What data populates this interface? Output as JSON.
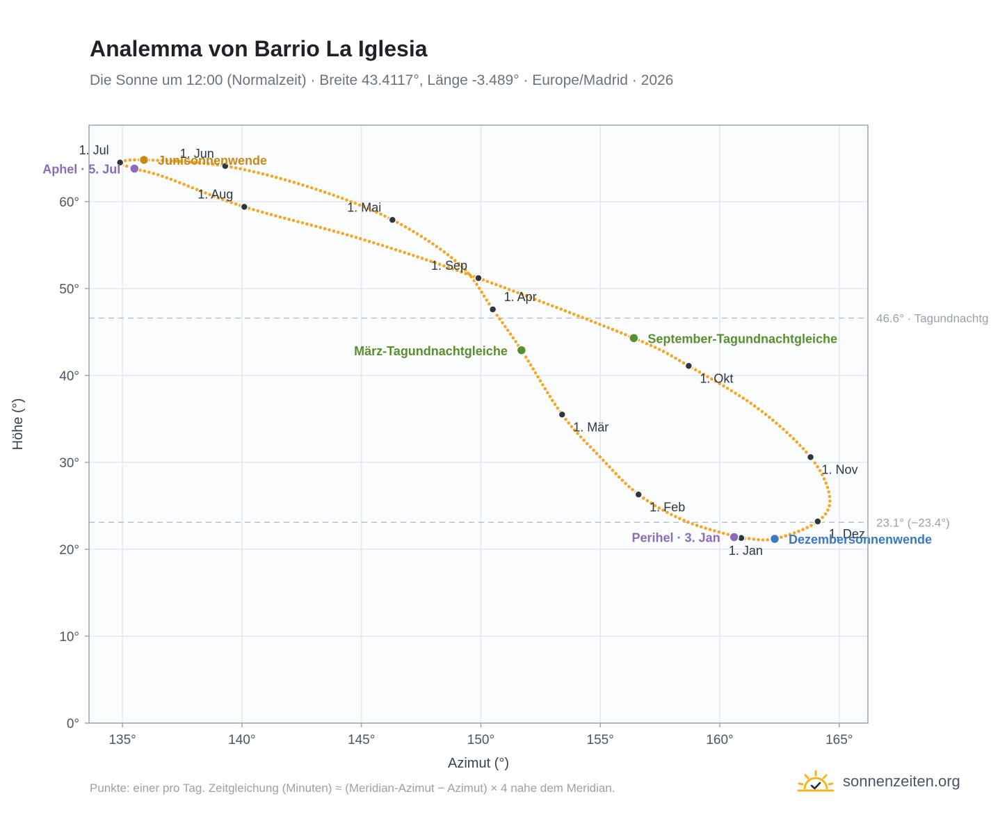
{
  "header": {
    "title": "Analemma von Barrio La Iglesia",
    "subtitle": "Die Sonne um 12:00 (Normalzeit) · Breite 43.4117°, Länge -3.489° · Europe/Madrid · 2026"
  },
  "footer": {
    "note": "Punkte: einer pro Tag. Zeitgleichung (Minuten) ≈ (Meridian-Azimut − Azimut) × 4 nahe dem Meridian.",
    "brand": "sonnenzeiten.org"
  },
  "chart_data": {
    "type": "scatter",
    "xlabel": "Azimut (°)",
    "ylabel": "Höhe (°)",
    "xlim": [
      133.6,
      166.2
    ],
    "ylim": [
      0,
      68.8
    ],
    "xticks": [
      135,
      140,
      145,
      150,
      155,
      160,
      165
    ],
    "xtick_labels": [
      "135°",
      "140°",
      "145°",
      "150°",
      "155°",
      "160°",
      "165°"
    ],
    "yticks": [
      0,
      10,
      20,
      30,
      40,
      50,
      60
    ],
    "ytick_labels": [
      "0°",
      "10°",
      "20°",
      "30°",
      "40°",
      "50°",
      "60°"
    ],
    "grid": true,
    "colors": {
      "curve": "#f5a623",
      "month_marker": "#2f3640",
      "solstice_june": "#c8891a",
      "solstice_december": "#3a78c2",
      "equinox": "#5a8f2e",
      "apsis": "#8e6bb8",
      "reference_line": "#b9c2cc",
      "plot_background": "#fafcfe"
    },
    "reference_lines": [
      {
        "y": 46.6,
        "label": "46.6° · Tagundnachtg"
      },
      {
        "y": 23.1,
        "label": "23.1° (−23.4°)"
      }
    ],
    "path": [
      {
        "date": "01-01",
        "azimuth": 160.9,
        "altitude": 21.3
      },
      {
        "date": "01-16",
        "azimuth": 158.6,
        "altitude": 23.2
      },
      {
        "date": "02-01",
        "azimuth": 156.6,
        "altitude": 26.3
      },
      {
        "date": "02-15",
        "azimuth": 155.0,
        "altitude": 30.6
      },
      {
        "date": "03-01",
        "azimuth": 153.4,
        "altitude": 35.5
      },
      {
        "date": "03-20",
        "azimuth": 151.7,
        "altitude": 42.9
      },
      {
        "date": "04-01",
        "azimuth": 150.5,
        "altitude": 47.6
      },
      {
        "date": "04-15",
        "azimuth": 149.1,
        "altitude": 52.8
      },
      {
        "date": "05-01",
        "azimuth": 146.3,
        "altitude": 57.9
      },
      {
        "date": "05-15",
        "azimuth": 142.9,
        "altitude": 61.6
      },
      {
        "date": "06-01",
        "azimuth": 139.3,
        "altitude": 64.1
      },
      {
        "date": "06-21",
        "azimuth": 135.9,
        "altitude": 64.8
      },
      {
        "date": "07-01",
        "azimuth": 134.9,
        "altitude": 64.5
      },
      {
        "date": "07-05",
        "azimuth": 135.5,
        "altitude": 63.8
      },
      {
        "date": "07-15",
        "azimuth": 136.8,
        "altitude": 62.8
      },
      {
        "date": "08-01",
        "azimuth": 140.1,
        "altitude": 59.4
      },
      {
        "date": "08-15",
        "azimuth": 145.0,
        "altitude": 55.7
      },
      {
        "date": "09-01",
        "azimuth": 149.9,
        "altitude": 51.2
      },
      {
        "date": "09-22",
        "azimuth": 156.4,
        "altitude": 44.3
      },
      {
        "date": "10-01",
        "azimuth": 158.7,
        "altitude": 41.1
      },
      {
        "date": "10-15",
        "azimuth": 161.6,
        "altitude": 36.2
      },
      {
        "date": "11-01",
        "azimuth": 163.8,
        "altitude": 30.6
      },
      {
        "date": "11-15",
        "azimuth": 164.6,
        "altitude": 26.0
      },
      {
        "date": "12-01",
        "azimuth": 164.1,
        "altitude": 23.2
      },
      {
        "date": "12-21",
        "azimuth": 162.3,
        "altitude": 21.2
      },
      {
        "date": "12-31",
        "azimuth": 161.0,
        "altitude": 21.3
      }
    ],
    "month_markers": [
      {
        "label": "1. Jan",
        "azimuth": 160.9,
        "altitude": 21.3,
        "label_pos": "below"
      },
      {
        "label": "1. Feb",
        "azimuth": 156.6,
        "altitude": 26.3,
        "label_pos": "below-right"
      },
      {
        "label": "1. Mär",
        "azimuth": 153.4,
        "altitude": 35.5,
        "label_pos": "below-right"
      },
      {
        "label": "1. Apr",
        "azimuth": 150.5,
        "altitude": 47.6,
        "label_pos": "above-right"
      },
      {
        "label": "1. Mai",
        "azimuth": 146.3,
        "altitude": 57.9,
        "label_pos": "above-left"
      },
      {
        "label": "1. Jun",
        "azimuth": 139.3,
        "altitude": 64.1,
        "label_pos": "above-left"
      },
      {
        "label": "1. Jul",
        "azimuth": 134.9,
        "altitude": 64.5,
        "label_pos": "above-left"
      },
      {
        "label": "1. Aug",
        "azimuth": 140.1,
        "altitude": 59.4,
        "label_pos": "above-left"
      },
      {
        "label": "1. Sep",
        "azimuth": 149.9,
        "altitude": 51.2,
        "label_pos": "above-left"
      },
      {
        "label": "1. Okt",
        "azimuth": 158.7,
        "altitude": 41.1,
        "label_pos": "below-right"
      },
      {
        "label": "1. Nov",
        "azimuth": 163.8,
        "altitude": 30.6,
        "label_pos": "below-right"
      },
      {
        "label": "1. Dez",
        "azimuth": 164.1,
        "altitude": 23.2,
        "label_pos": "below-right"
      }
    ],
    "events": [
      {
        "label": "Junisonnenwende",
        "azimuth": 135.9,
        "altitude": 64.8,
        "color_key": "solstice_june",
        "label_side": "right"
      },
      {
        "label": "Dezembersonnenwende",
        "azimuth": 162.3,
        "altitude": 21.2,
        "color_key": "solstice_december",
        "label_side": "right"
      },
      {
        "label": "März-Tagundnachtgleiche",
        "azimuth": 151.7,
        "altitude": 42.9,
        "color_key": "equinox",
        "label_side": "left"
      },
      {
        "label": "September-Tagundnachtgleiche",
        "azimuth": 156.4,
        "altitude": 44.3,
        "color_key": "equinox",
        "label_side": "right"
      },
      {
        "label": "Aphel · 5. Jul",
        "azimuth": 135.5,
        "altitude": 63.8,
        "color_key": "apsis",
        "label_side": "left"
      },
      {
        "label": "Perihel · 3. Jan",
        "azimuth": 160.6,
        "altitude": 21.4,
        "color_key": "apsis",
        "label_side": "left"
      }
    ]
  }
}
